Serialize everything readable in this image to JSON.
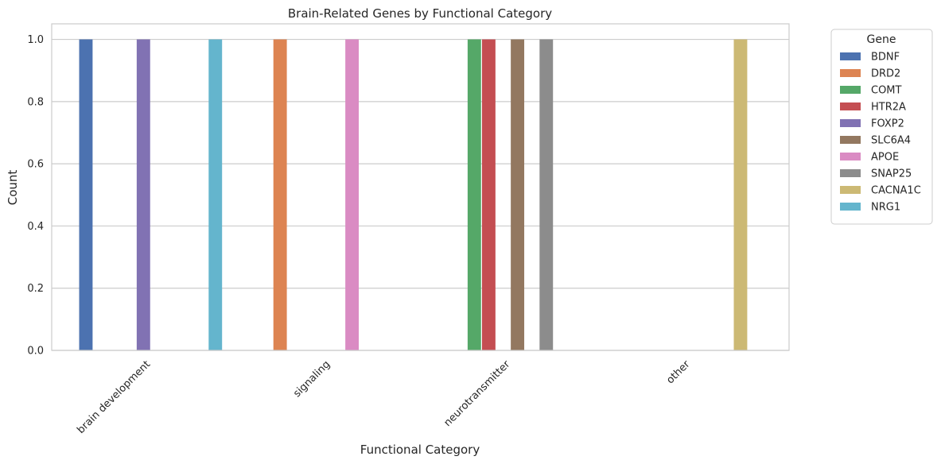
{
  "chart_data": {
    "type": "bar",
    "title": "Brain-Related Genes by Functional Category",
    "xlabel": "Functional Category",
    "ylabel": "Count",
    "ylim": [
      0,
      1.05
    ],
    "yticks": [
      "0.0",
      "0.2",
      "0.4",
      "0.6",
      "0.8",
      "1.0"
    ],
    "grid": "horizontal",
    "legend_title": "Gene",
    "legend_placement": "outside-right",
    "categories": [
      "brain development",
      "signaling",
      "neurotransmitter",
      "other"
    ],
    "series": [
      {
        "name": "BDNF",
        "color": "#4c72b0",
        "values": [
          1,
          0,
          0,
          0
        ]
      },
      {
        "name": "DRD2",
        "color": "#dd8452",
        "values": [
          0,
          1,
          0,
          0
        ]
      },
      {
        "name": "COMT",
        "color": "#55a868",
        "values": [
          0,
          0,
          1,
          0
        ]
      },
      {
        "name": "HTR2A",
        "color": "#c44e52",
        "values": [
          0,
          0,
          1,
          0
        ]
      },
      {
        "name": "FOXP2",
        "color": "#8172b3",
        "values": [
          1,
          0,
          0,
          0
        ]
      },
      {
        "name": "SLC6A4",
        "color": "#937860",
        "values": [
          0,
          0,
          1,
          0
        ]
      },
      {
        "name": "APOE",
        "color": "#da8bc3",
        "values": [
          0,
          1,
          0,
          0
        ]
      },
      {
        "name": "SNAP25",
        "color": "#8c8c8c",
        "values": [
          0,
          0,
          1,
          0
        ]
      },
      {
        "name": "CACNA1C",
        "color": "#ccb974",
        "values": [
          0,
          0,
          0,
          1
        ]
      },
      {
        "name": "NRG1",
        "color": "#64b5cd",
        "values": [
          1,
          0,
          0,
          0
        ]
      }
    ]
  }
}
